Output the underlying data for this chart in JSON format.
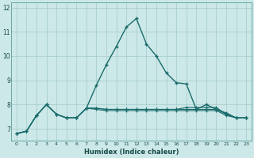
{
  "xlabel": "Humidex (Indice chaleur)",
  "background_color": "#cce8e8",
  "grid_color": "#aacece",
  "line_color": "#1a6b6b",
  "xlim": [
    -0.5,
    23.5
  ],
  "ylim": [
    6.5,
    12.2
  ],
  "yticks": [
    7,
    8,
    9,
    10,
    11,
    12
  ],
  "xticks": [
    0,
    1,
    2,
    3,
    4,
    5,
    6,
    7,
    8,
    9,
    10,
    11,
    12,
    13,
    14,
    15,
    16,
    17,
    18,
    19,
    20,
    21,
    22,
    23
  ],
  "x": [
    0,
    1,
    2,
    3,
    4,
    5,
    6,
    7,
    8,
    9,
    10,
    11,
    12,
    13,
    14,
    15,
    16,
    17,
    18,
    19,
    20,
    21,
    22,
    23
  ],
  "y_main": [
    6.8,
    6.9,
    7.55,
    8.0,
    7.6,
    7.45,
    7.45,
    7.85,
    8.8,
    9.65,
    10.4,
    11.2,
    11.55,
    10.5,
    10.0,
    9.3,
    8.9,
    8.85,
    7.8,
    8.0,
    7.8,
    7.65,
    7.45,
    7.45
  ],
  "y_flat1": [
    6.8,
    6.9,
    7.55,
    8.0,
    7.6,
    7.45,
    7.45,
    7.85,
    7.8,
    7.75,
    7.75,
    7.75,
    7.75,
    7.75,
    7.75,
    7.75,
    7.75,
    7.75,
    7.75,
    7.75,
    7.75,
    7.55,
    7.45,
    7.45
  ],
  "y_flat2": [
    6.8,
    6.9,
    7.55,
    8.0,
    7.6,
    7.45,
    7.45,
    7.85,
    7.85,
    7.8,
    7.8,
    7.8,
    7.8,
    7.8,
    7.8,
    7.8,
    7.8,
    7.8,
    7.8,
    7.8,
    7.8,
    7.6,
    7.45,
    7.45
  ],
  "y_flat3": [
    6.8,
    6.9,
    7.55,
    8.0,
    7.6,
    7.45,
    7.45,
    7.85,
    7.85,
    7.8,
    7.8,
    7.8,
    7.8,
    7.8,
    7.8,
    7.8,
    7.8,
    7.88,
    7.88,
    7.88,
    7.88,
    7.6,
    7.45,
    7.45
  ]
}
